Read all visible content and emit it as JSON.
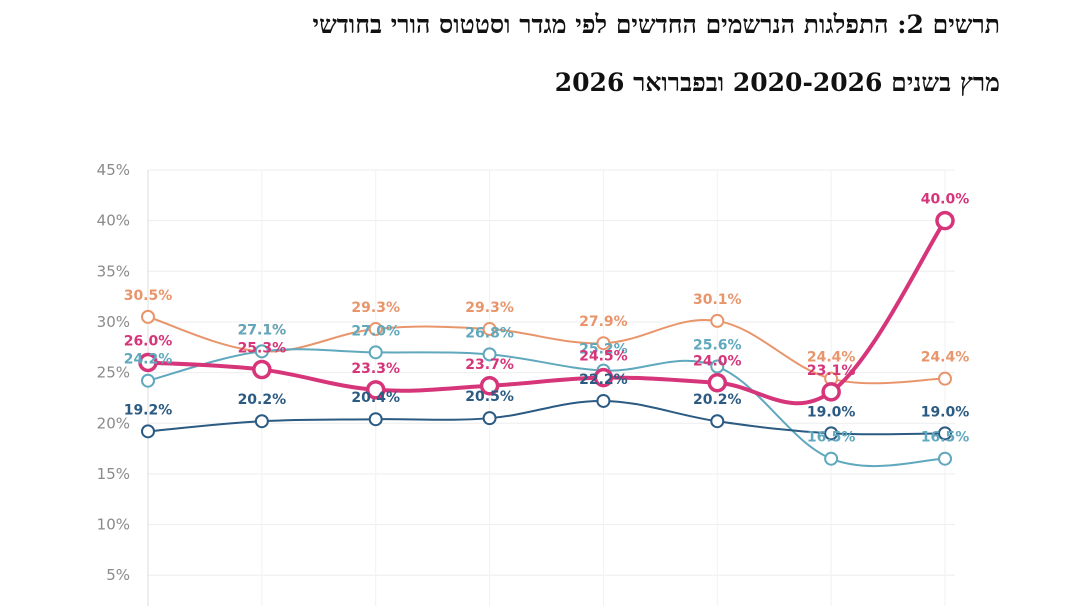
{
  "title_lines": [
    "תרשים 2: התפלגות הנרשמים החדשים לפי מגדר וסטטוס הורי בחודשי",
    "מרץ בשנים 2020-2026 ובפברואר 2026"
  ],
  "chart_data": {
    "type": "line",
    "ylim": [
      0,
      45
    ],
    "ytick_values": [
      5,
      10,
      15,
      20,
      25,
      30,
      35,
      40,
      45
    ],
    "ytick_labels": [
      "5%",
      "10%",
      "15%",
      "20%",
      "25%",
      "30%",
      "35%",
      "40%",
      "45%"
    ],
    "x_count": 8,
    "grid": true,
    "series": [
      {
        "color": "#e8956b",
        "stroke": 2,
        "values": [
          30.5,
          27.1,
          29.3,
          29.3,
          27.9,
          30.1,
          24.4,
          24.4
        ],
        "labels": [
          "30.5%",
          "27.1%",
          "29.3%",
          "29.3%",
          "27.9%",
          "30.1%",
          "24.4%",
          "24.4%"
        ]
      },
      {
        "color": "#5fa8bd",
        "stroke": 2,
        "values": [
          24.2,
          27.1,
          27.0,
          26.8,
          25.2,
          25.6,
          16.5,
          16.5
        ],
        "labels": [
          "24.2%",
          "27.1%",
          "27.0%",
          "26.8%",
          "25.2%",
          "25.6%",
          "16.5%",
          "16.5%"
        ]
      },
      {
        "color": "#2b5a82",
        "stroke": 2,
        "values": [
          19.2,
          20.2,
          20.4,
          20.5,
          22.2,
          20.2,
          19.0,
          19.0
        ],
        "labels": [
          "19.2%",
          "20.2%",
          "20.4%",
          "20.5%",
          "22.2%",
          "20.2%",
          "19.0%",
          "19.0%"
        ]
      },
      {
        "color": "#d6357a",
        "stroke": 4,
        "values": [
          26.0,
          25.3,
          23.3,
          23.7,
          24.5,
          24.0,
          23.1,
          40.0
        ],
        "labels": [
          "26.0%",
          "25.3%",
          "23.3%",
          "23.7%",
          "24.5%",
          "24.0%",
          "23.1%",
          "40.0%"
        ]
      }
    ]
  }
}
